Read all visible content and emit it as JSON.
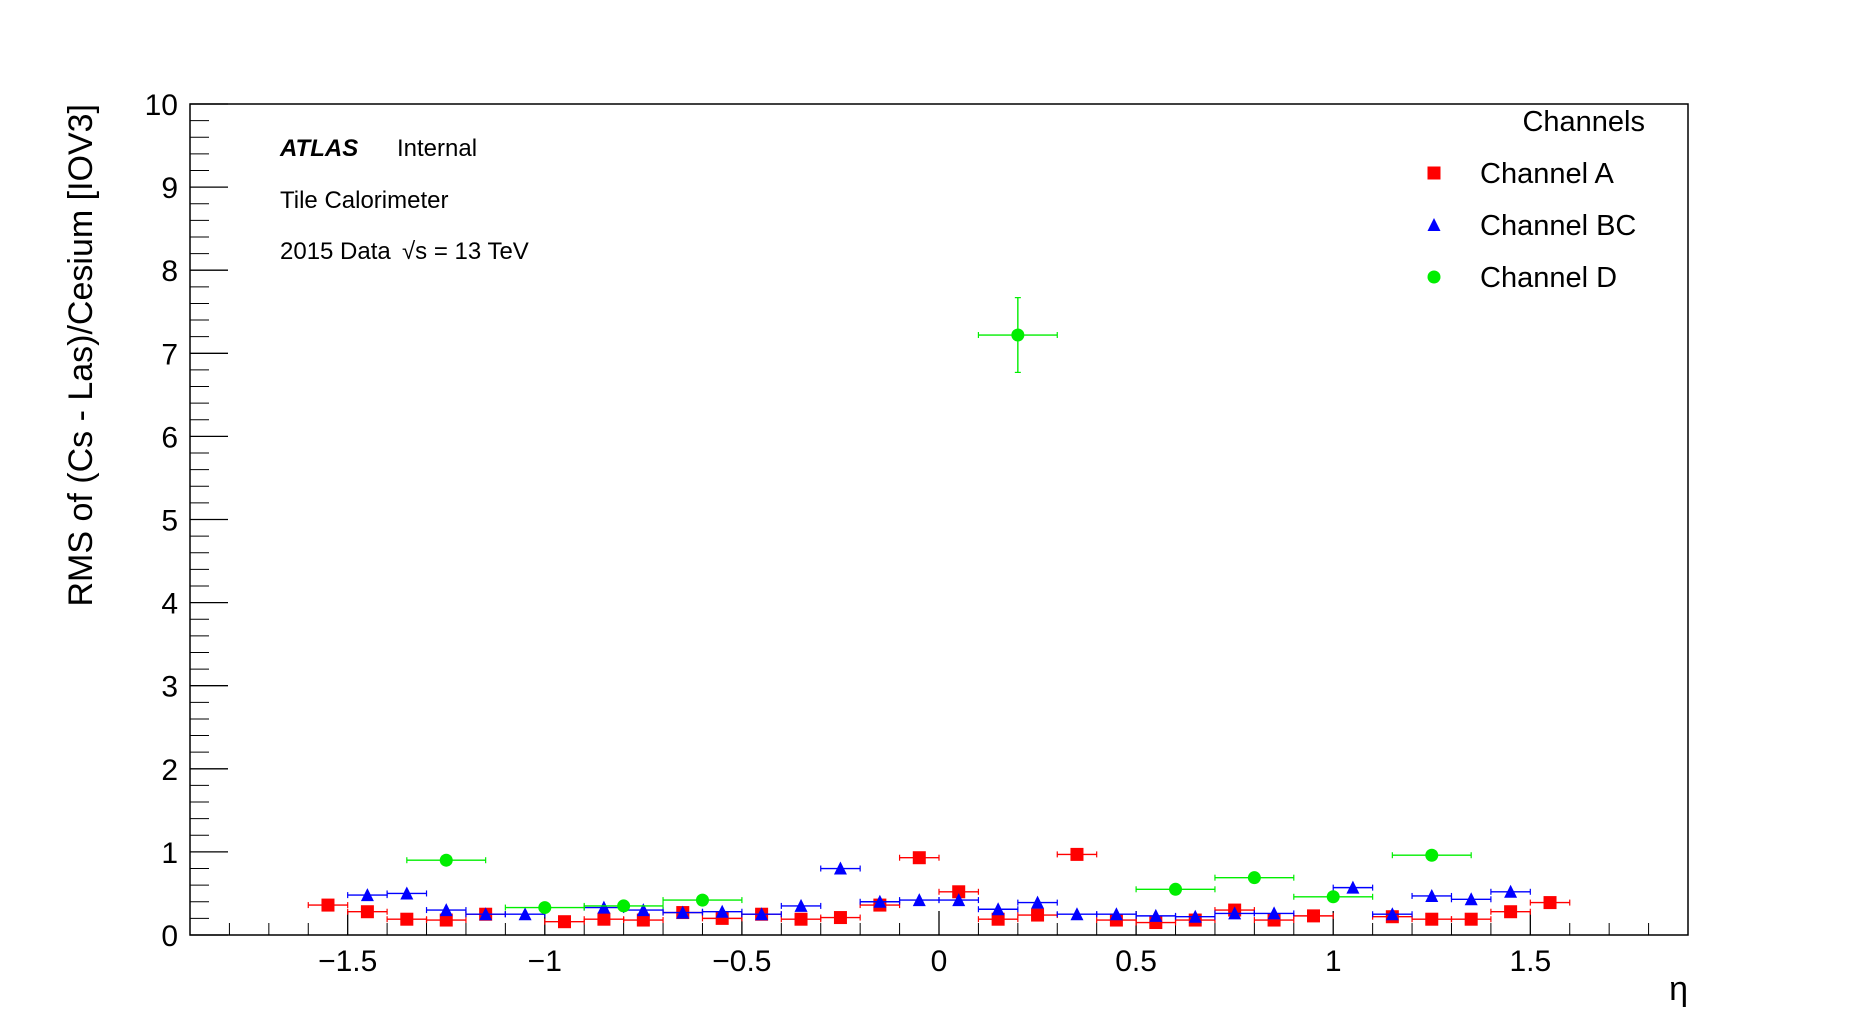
{
  "chart_data": {
    "type": "scatter",
    "title": "",
    "xlabel": "η",
    "ylabel": "RMS of (Cs - Las)/Cesium [IOV3]",
    "xlim": [
      -1.9,
      1.9
    ],
    "ylim": [
      0,
      10
    ],
    "x_ticks": [
      -1.5,
      -1,
      -0.5,
      0,
      0.5,
      1,
      1.5
    ],
    "x_tick_labels": [
      "−1.5",
      "−1",
      "−0.5",
      "0",
      "0.5",
      "1",
      "1.5"
    ],
    "y_ticks": [
      0,
      1,
      2,
      3,
      4,
      5,
      6,
      7,
      8,
      9,
      10
    ],
    "y_tick_labels": [
      "0",
      "1",
      "2",
      "3",
      "4",
      "5",
      "6",
      "7",
      "8",
      "9",
      "10"
    ],
    "grid": false,
    "legend": {
      "title": "Channels",
      "position": "top-right"
    },
    "annotations": {
      "experiment": "ATLAS",
      "status": "Internal",
      "detector": "Tile Calorimeter",
      "dataset": "2015 Data",
      "energy": "√s = 13 TeV"
    },
    "series": [
      {
        "name": "Channel A",
        "marker": "square",
        "color": "#ff0000",
        "x": [
          -1.55,
          -1.45,
          -1.35,
          -1.25,
          -1.15,
          -0.95,
          -0.85,
          -0.75,
          -0.65,
          -0.55,
          -0.45,
          -0.35,
          -0.25,
          -0.15,
          -0.05,
          0.05,
          0.15,
          0.25,
          0.35,
          0.45,
          0.55,
          0.65,
          0.75,
          0.85,
          0.95,
          1.15,
          1.25,
          1.35,
          1.45,
          1.55
        ],
        "y": [
          0.36,
          0.28,
          0.19,
          0.18,
          0.25,
          0.16,
          0.19,
          0.18,
          0.27,
          0.2,
          0.25,
          0.19,
          0.21,
          0.36,
          0.93,
          0.52,
          0.19,
          0.24,
          0.97,
          0.18,
          0.15,
          0.18,
          0.3,
          0.18,
          0.23,
          0.22,
          0.19,
          0.19,
          0.28,
          0.39
        ],
        "x_err": 0.05,
        "y_err": 0.02
      },
      {
        "name": "Channel BC",
        "marker": "triangle",
        "color": "#0000ff",
        "x": [
          -1.45,
          -1.35,
          -1.25,
          -1.15,
          -1.05,
          -0.85,
          -0.75,
          -0.65,
          -0.55,
          -0.45,
          -0.35,
          -0.25,
          -0.15,
          -0.05,
          0.05,
          0.15,
          0.25,
          0.35,
          0.45,
          0.55,
          0.65,
          0.75,
          0.85,
          1.05,
          1.15,
          1.25,
          1.35,
          1.45
        ],
        "y": [
          0.48,
          0.5,
          0.3,
          0.25,
          0.25,
          0.33,
          0.3,
          0.27,
          0.28,
          0.25,
          0.35,
          0.8,
          0.4,
          0.42,
          0.42,
          0.31,
          0.39,
          0.25,
          0.25,
          0.23,
          0.22,
          0.26,
          0.26,
          0.57,
          0.25,
          0.47,
          0.43,
          0.52
        ],
        "x_err": 0.05,
        "y_err": 0.02
      },
      {
        "name": "Channel D",
        "marker": "circle",
        "color": "#00ee00",
        "x": [
          -1.25,
          -1.0,
          -0.8,
          -0.6,
          0.2,
          0.6,
          0.8,
          1.0,
          1.25
        ],
        "y": [
          0.9,
          0.33,
          0.35,
          0.42,
          7.22,
          0.55,
          0.69,
          0.46,
          0.96
        ],
        "x_err": 0.1,
        "y_err": [
          0.02,
          0.02,
          0.02,
          0.02,
          0.45,
          0.02,
          0.03,
          0.02,
          0.02
        ]
      }
    ]
  }
}
